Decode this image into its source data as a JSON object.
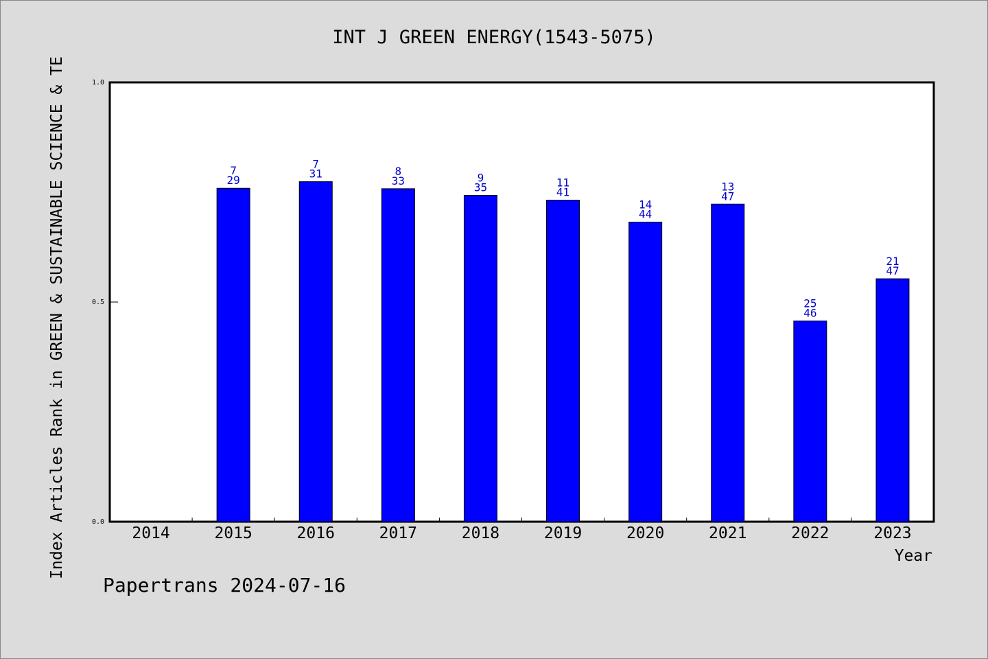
{
  "chart_data": {
    "type": "bar",
    "title": "INT J GREEN ENERGY(1543-5075)",
    "xlabel": "Year",
    "ylabel": "Index Articles Rank in GREEN & SUSTAINABLE SCIENCE & TE",
    "ylim": [
      0,
      1.0
    ],
    "y_ticks": [
      "0.0",
      "0.5",
      "1.0"
    ],
    "categories": [
      "2014",
      "2015",
      "2016",
      "2017",
      "2018",
      "2019",
      "2020",
      "2021",
      "2022",
      "2023"
    ],
    "values": [
      null,
      0.759,
      0.774,
      0.758,
      0.743,
      0.732,
      0.682,
      0.723,
      0.457,
      0.553
    ],
    "rank_labels": [
      "",
      "7",
      "7",
      "8",
      "9",
      "11",
      "14",
      "13",
      "25",
      "21"
    ],
    "total_labels": [
      "",
      "29",
      "31",
      "33",
      "35",
      "41",
      "44",
      "47",
      "46",
      "47"
    ],
    "bar_color": "#0000ff",
    "label_color": "#0000cc",
    "grid": false,
    "footer": "Papertrans 2024-07-16"
  }
}
